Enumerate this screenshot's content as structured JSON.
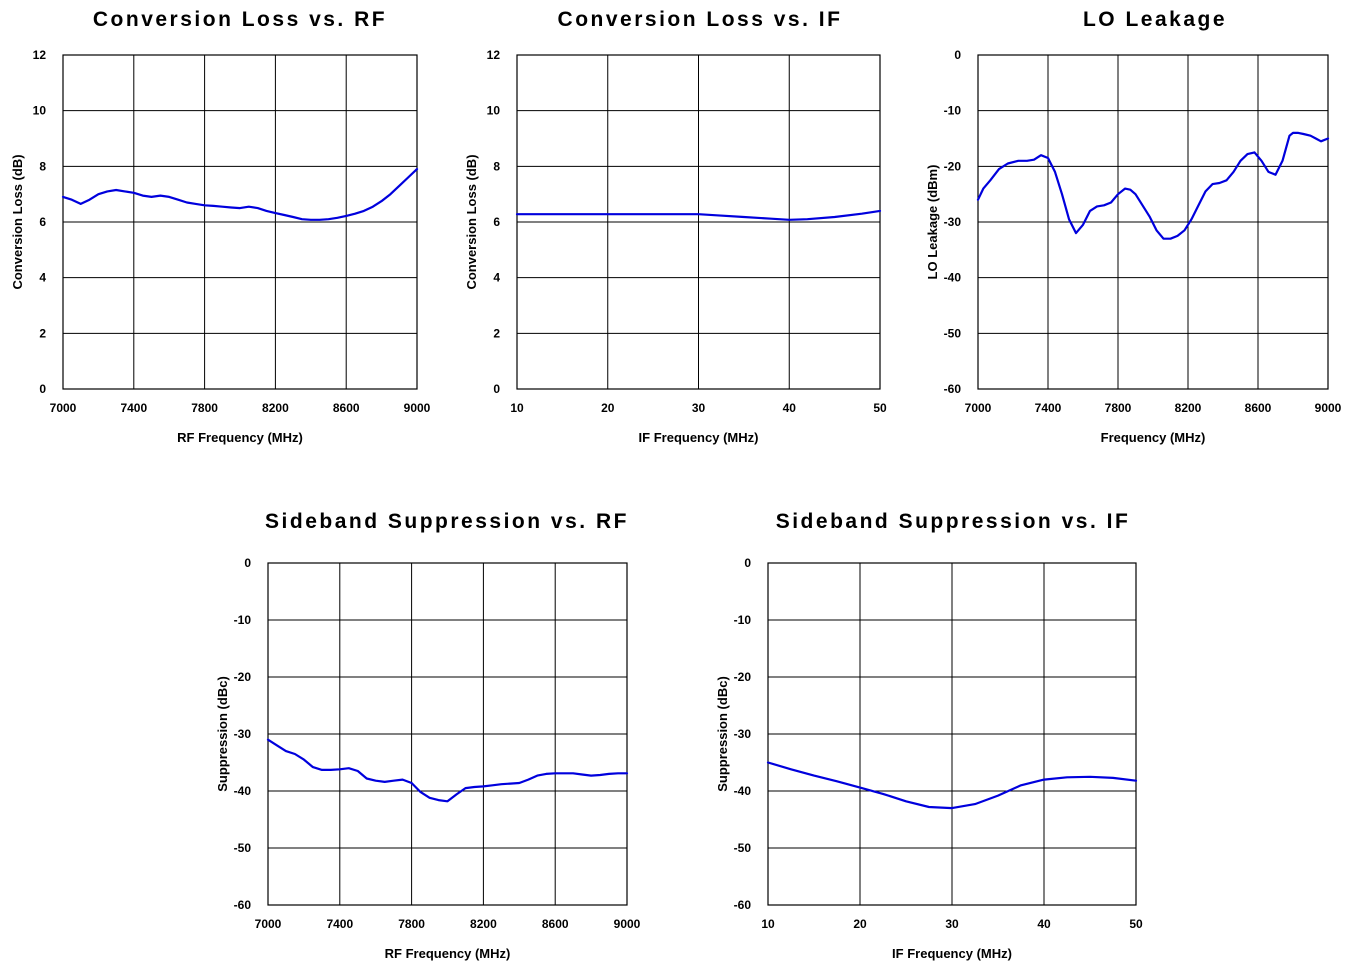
{
  "chart_data": [
    {
      "type": "line",
      "title": "Conversion Loss vs. RF",
      "xlabel": "RF Frequency (MHz)",
      "ylabel": "Conversion Loss (dB)",
      "xlim": [
        7000,
        9000
      ],
      "ylim": [
        0,
        12
      ],
      "xticks": [
        7000,
        7400,
        7800,
        8200,
        8600,
        9000
      ],
      "yticks": [
        0,
        2,
        4,
        6,
        8,
        10,
        12
      ],
      "grid": true,
      "series": [
        {
          "color": "#0000dd",
          "x": [
            7000,
            7050,
            7100,
            7150,
            7200,
            7250,
            7300,
            7350,
            7400,
            7450,
            7500,
            7550,
            7600,
            7650,
            7700,
            7750,
            7800,
            7850,
            7900,
            7950,
            8000,
            8050,
            8100,
            8150,
            8200,
            8250,
            8300,
            8350,
            8400,
            8450,
            8500,
            8550,
            8600,
            8650,
            8700,
            8750,
            8800,
            8850,
            8900,
            8950,
            9000
          ],
          "y": [
            6.9,
            6.8,
            6.65,
            6.8,
            7.0,
            7.1,
            7.15,
            7.1,
            7.05,
            6.95,
            6.9,
            6.95,
            6.9,
            6.8,
            6.7,
            6.65,
            6.6,
            6.58,
            6.55,
            6.52,
            6.5,
            6.55,
            6.5,
            6.4,
            6.32,
            6.25,
            6.18,
            6.1,
            6.08,
            6.08,
            6.1,
            6.15,
            6.22,
            6.3,
            6.4,
            6.55,
            6.75,
            7.0,
            7.3,
            7.6,
            7.9
          ]
        }
      ]
    },
    {
      "type": "line",
      "title": "Conversion Loss vs. IF",
      "xlabel": "IF Frequency (MHz)",
      "ylabel": "Conversion Loss (dB)",
      "xlim": [
        10,
        50
      ],
      "ylim": [
        0,
        12
      ],
      "xticks": [
        10,
        20,
        30,
        40,
        50
      ],
      "yticks": [
        0,
        2,
        4,
        6,
        8,
        10,
        12
      ],
      "grid": true,
      "series": [
        {
          "color": "#0000dd",
          "x": [
            10,
            15,
            20,
            25,
            30,
            32,
            35,
            38,
            40,
            42,
            45,
            48,
            50
          ],
          "y": [
            6.28,
            6.28,
            6.28,
            6.28,
            6.28,
            6.24,
            6.18,
            6.12,
            6.08,
            6.1,
            6.18,
            6.3,
            6.4
          ]
        }
      ]
    },
    {
      "type": "line",
      "title": "LO Leakage",
      "xlabel": "Frequency (MHz)",
      "ylabel": "LO Leakage (dBm)",
      "xlim": [
        7000,
        9000
      ],
      "ylim": [
        -60,
        0
      ],
      "xticks": [
        7000,
        7400,
        7800,
        8200,
        8600,
        9000
      ],
      "yticks": [
        -60,
        -50,
        -40,
        -30,
        -20,
        -10,
        0
      ],
      "grid": true,
      "series": [
        {
          "color": "#0000dd",
          "x": [
            7000,
            7030,
            7070,
            7120,
            7170,
            7230,
            7280,
            7320,
            7360,
            7400,
            7440,
            7480,
            7520,
            7560,
            7600,
            7640,
            7680,
            7720,
            7760,
            7800,
            7840,
            7870,
            7900,
            7940,
            7980,
            8020,
            8060,
            8100,
            8140,
            8180,
            8220,
            8260,
            8300,
            8340,
            8380,
            8420,
            8460,
            8500,
            8540,
            8580,
            8620,
            8660,
            8700,
            8740,
            8780,
            8800,
            8830,
            8860,
            8900,
            8930,
            8960,
            9000
          ],
          "y": [
            -26,
            -24,
            -22.5,
            -20.5,
            -19.5,
            -19,
            -19,
            -18.8,
            -18,
            -18.5,
            -21,
            -25,
            -29.5,
            -32,
            -30.5,
            -28,
            -27.2,
            -27,
            -26.5,
            -25,
            -24,
            -24.2,
            -25,
            -27,
            -29,
            -31.5,
            -33,
            -33,
            -32.5,
            -31.5,
            -29.5,
            -27,
            -24.5,
            -23.2,
            -23,
            -22.5,
            -21,
            -19,
            -17.8,
            -17.5,
            -19,
            -21,
            -21.5,
            -19,
            -14.5,
            -14,
            -14,
            -14.2,
            -14.5,
            -15,
            -15.5,
            -15
          ]
        }
      ]
    },
    {
      "type": "line",
      "title": "Sideband Suppression vs. RF",
      "xlabel": "RF Frequency (MHz)",
      "ylabel": "Suppression (dBc)",
      "xlim": [
        7000,
        9000
      ],
      "ylim": [
        -60,
        0
      ],
      "xticks": [
        7000,
        7400,
        7800,
        8200,
        8600,
        9000
      ],
      "yticks": [
        -60,
        -50,
        -40,
        -30,
        -20,
        -10,
        0
      ],
      "grid": true,
      "series": [
        {
          "color": "#0000dd",
          "x": [
            7000,
            7050,
            7100,
            7150,
            7200,
            7250,
            7300,
            7350,
            7400,
            7450,
            7500,
            7550,
            7600,
            7650,
            7700,
            7750,
            7800,
            7850,
            7900,
            7950,
            8000,
            8050,
            8100,
            8150,
            8200,
            8250,
            8300,
            8350,
            8400,
            8450,
            8500,
            8550,
            8600,
            8650,
            8700,
            8750,
            8800,
            8850,
            8900,
            8950,
            9000
          ],
          "y": [
            -31,
            -32,
            -33,
            -33.5,
            -34.5,
            -35.8,
            -36.3,
            -36.3,
            -36.2,
            -36.0,
            -36.5,
            -37.8,
            -38.2,
            -38.4,
            -38.2,
            -38.0,
            -38.6,
            -40.2,
            -41.2,
            -41.6,
            -41.8,
            -40.6,
            -39.5,
            -39.3,
            -39.2,
            -39.0,
            -38.8,
            -38.7,
            -38.6,
            -38.0,
            -37.3,
            -37.0,
            -36.9,
            -36.9,
            -36.9,
            -37.1,
            -37.3,
            -37.2,
            -37.0,
            -36.9,
            -36.9
          ]
        }
      ]
    },
    {
      "type": "line",
      "title": "Sideband Suppression vs. IF",
      "xlabel": "IF Frequency (MHz)",
      "ylabel": "Suppression (dBc)",
      "xlim": [
        10,
        50
      ],
      "ylim": [
        -60,
        0
      ],
      "xticks": [
        10,
        20,
        30,
        40,
        50
      ],
      "yticks": [
        -60,
        -50,
        -40,
        -30,
        -20,
        -10,
        0
      ],
      "grid": true,
      "series": [
        {
          "color": "#0000dd",
          "x": [
            10,
            12.5,
            15,
            17.5,
            20,
            22.5,
            25,
            27.5,
            30,
            32.5,
            35,
            37.5,
            40,
            42.5,
            45,
            47.5,
            50
          ],
          "y": [
            -35,
            -36.2,
            -37.3,
            -38.3,
            -39.4,
            -40.5,
            -41.8,
            -42.8,
            -43.0,
            -42.3,
            -40.8,
            -39.0,
            -38.0,
            -37.6,
            -37.5,
            -37.7,
            -38.2
          ]
        }
      ]
    }
  ]
}
